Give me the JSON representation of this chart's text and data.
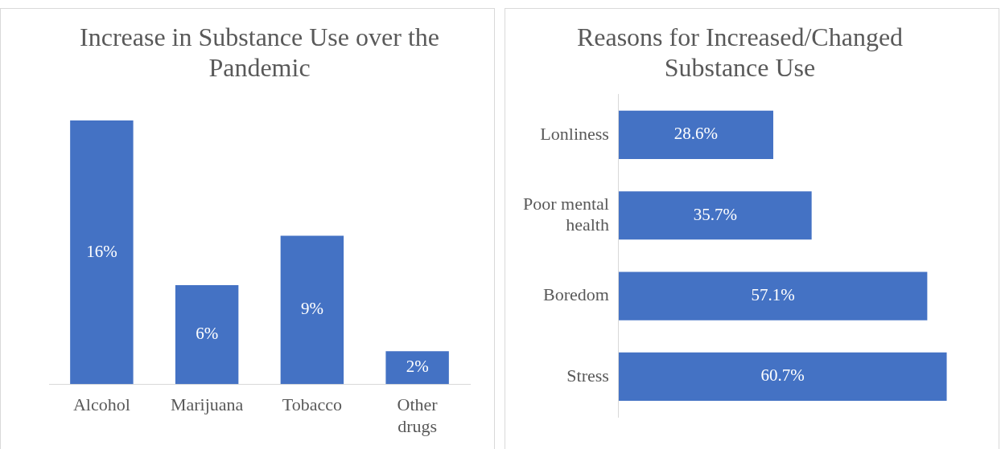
{
  "chart_data": [
    {
      "type": "bar",
      "title": "Increase in Substance Use over the Pandemic",
      "categories": [
        "Alcohol",
        "Marijuana",
        "Tobacco",
        "Other drugs"
      ],
      "values": [
        16,
        6,
        9,
        2
      ],
      "value_labels": [
        "16%",
        "6%",
        "9%",
        "2%"
      ],
      "color": "#4472c4",
      "legend": false
    },
    {
      "type": "bar",
      "orientation": "horizontal",
      "title": "Reasons for Increased/Changed Substance Use",
      "categories": [
        "Lonliness",
        "Poor mental health",
        "Boredom",
        "Stress"
      ],
      "values": [
        28.6,
        35.7,
        57.1,
        60.7
      ],
      "value_labels": [
        "28.6%",
        "35.7%",
        "57.1%",
        "60.7%"
      ],
      "color": "#4472c4",
      "legend": false
    }
  ]
}
